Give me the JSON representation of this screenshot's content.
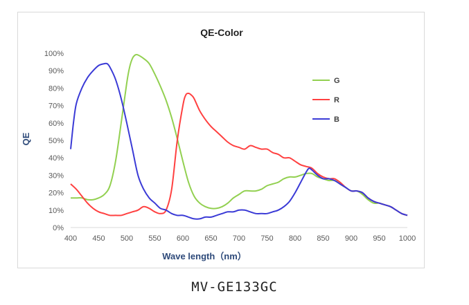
{
  "caption": "MV-GE133GC",
  "chart_data": {
    "type": "line",
    "title": "QE-Color",
    "xlabel": "Wave length（nm）",
    "ylabel": "QE",
    "xlim": [
      400,
      1000
    ],
    "ylim": [
      0,
      100
    ],
    "xticks": [
      400,
      450,
      500,
      550,
      600,
      650,
      700,
      750,
      800,
      850,
      900,
      950,
      1000
    ],
    "yticks": [
      "0%",
      "10%",
      "20%",
      "30%",
      "40%",
      "50%",
      "60%",
      "70%",
      "80%",
      "90%",
      "100%"
    ],
    "grid": false,
    "legend_position": "right",
    "series": [
      {
        "name": "G",
        "color": "#92d050",
        "x": [
          400,
          410,
          420,
          430,
          440,
          450,
          460,
          470,
          480,
          490,
          500,
          505,
          510,
          515,
          520,
          530,
          540,
          550,
          560,
          570,
          580,
          590,
          600,
          610,
          620,
          630,
          640,
          650,
          660,
          670,
          680,
          690,
          700,
          710,
          720,
          730,
          740,
          750,
          760,
          770,
          780,
          790,
          800,
          810,
          820,
          830,
          840,
          850,
          860,
          870,
          880,
          890,
          900,
          910,
          920,
          930,
          940,
          950,
          960,
          970,
          980,
          990,
          1000
        ],
        "y": [
          17,
          17,
          17,
          16,
          16,
          17,
          19,
          24,
          38,
          60,
          83,
          92,
          97,
          99,
          99,
          97,
          94,
          88,
          81,
          73,
          63,
          51,
          38,
          26,
          18,
          14,
          12,
          11,
          11,
          12,
          14,
          17,
          19,
          21,
          21,
          21,
          22,
          24,
          25,
          26,
          28,
          29,
          29,
          30,
          31,
          31,
          29,
          28,
          27,
          27,
          25,
          23,
          21,
          21,
          19,
          16,
          14,
          14,
          13,
          12,
          10,
          8,
          7
        ]
      },
      {
        "name": "R",
        "color": "#ff4040",
        "x": [
          400,
          410,
          420,
          430,
          440,
          450,
          460,
          470,
          480,
          490,
          500,
          510,
          520,
          530,
          540,
          550,
          560,
          570,
          580,
          590,
          600,
          605,
          610,
          615,
          620,
          630,
          640,
          650,
          660,
          670,
          680,
          690,
          700,
          710,
          720,
          730,
          740,
          750,
          760,
          770,
          780,
          790,
          800,
          810,
          820,
          830,
          840,
          850,
          860,
          870,
          880,
          890,
          900,
          910,
          920,
          930,
          940,
          950,
          960,
          970,
          980,
          990,
          1000
        ],
        "y": [
          25,
          22,
          18,
          14,
          11,
          9,
          8,
          7,
          7,
          7,
          8,
          9,
          10,
          12,
          11,
          9,
          8,
          10,
          22,
          50,
          70,
          76,
          77,
          76,
          74,
          67,
          62,
          58,
          55,
          52,
          49,
          47,
          46,
          45,
          47,
          46,
          45,
          45,
          43,
          42,
          40,
          40,
          38,
          36,
          35,
          34,
          31,
          29,
          28,
          28,
          26,
          23,
          21,
          21,
          20,
          17,
          15,
          14,
          13,
          12,
          10,
          8,
          7
        ]
      },
      {
        "name": "B",
        "color": "#3a3ad6",
        "x": [
          400,
          405,
          410,
          420,
          430,
          440,
          450,
          460,
          465,
          470,
          480,
          490,
          500,
          510,
          520,
          530,
          540,
          550,
          560,
          570,
          580,
          590,
          600,
          610,
          620,
          630,
          640,
          650,
          660,
          670,
          680,
          690,
          700,
          710,
          720,
          730,
          740,
          750,
          760,
          770,
          780,
          790,
          800,
          810,
          820,
          825,
          830,
          840,
          850,
          860,
          870,
          880,
          890,
          900,
          910,
          920,
          930,
          940,
          950,
          960,
          970,
          980,
          990,
          1000
        ],
        "y": [
          45,
          60,
          71,
          80,
          86,
          90,
          93,
          94,
          94,
          92,
          85,
          74,
          60,
          45,
          30,
          22,
          17,
          14,
          11,
          10,
          8,
          7,
          7,
          6,
          5,
          5,
          6,
          6,
          7,
          8,
          9,
          9,
          10,
          10,
          9,
          8,
          8,
          8,
          9,
          10,
          12,
          15,
          20,
          26,
          32,
          34,
          33,
          30,
          28,
          28,
          27,
          25,
          23,
          21,
          21,
          20,
          17,
          15,
          14,
          13,
          12,
          10,
          8,
          7
        ]
      }
    ]
  }
}
